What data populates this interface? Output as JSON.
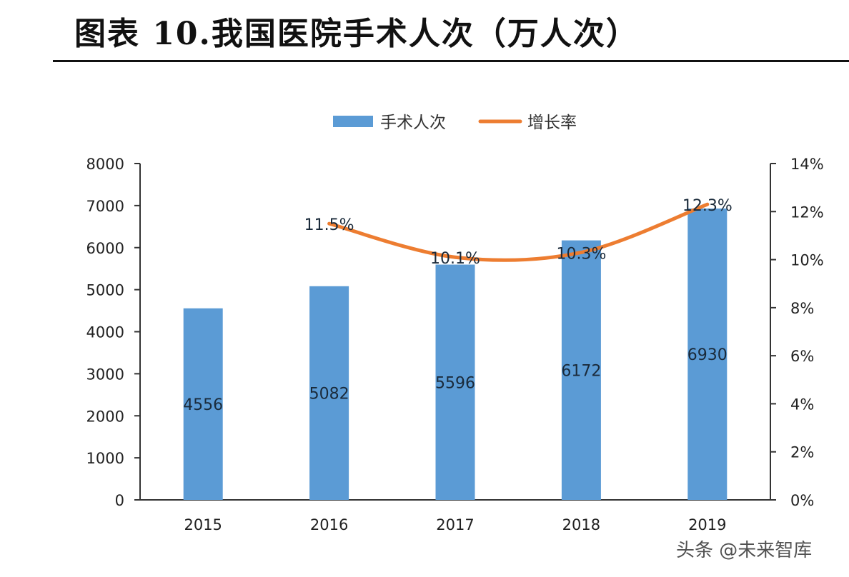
{
  "header": {
    "title": "图表 10.我国医院手术人次（万人次）"
  },
  "watermark": "头条 @未来智库",
  "chart_data": {
    "type": "bar",
    "categories": [
      "2015",
      "2016",
      "2017",
      "2018",
      "2019"
    ],
    "series": [
      {
        "name": "手术人次",
        "type": "bar",
        "axis": "left",
        "color": "#5b9bd5",
        "values": [
          4556,
          5082,
          5596,
          6172,
          6930
        ],
        "labels": [
          "4556",
          "5082",
          "5596",
          "6172",
          "6930"
        ]
      },
      {
        "name": "增长率",
        "type": "line",
        "axis": "right",
        "color": "#ed7d31",
        "values": [
          null,
          11.5,
          10.1,
          10.3,
          12.3
        ],
        "labels": [
          null,
          "11.5%",
          "10.1%",
          "10.3%",
          "12.3%"
        ]
      }
    ],
    "y_left": {
      "min": 0,
      "max": 8000,
      "ticks": [
        "0",
        "1000",
        "2000",
        "3000",
        "4000",
        "5000",
        "6000",
        "7000",
        "8000"
      ]
    },
    "y_right": {
      "min": 0,
      "max": 14,
      "ticks": [
        "0%",
        "2%",
        "4%",
        "6%",
        "8%",
        "10%",
        "12%",
        "14%"
      ]
    },
    "legend": {
      "placement": "top-center",
      "items": [
        {
          "label": "手术人次",
          "symbol": "bar",
          "color": "#5b9bd5"
        },
        {
          "label": "增长率",
          "symbol": "line",
          "color": "#ed7d31"
        }
      ]
    },
    "grid": false
  }
}
